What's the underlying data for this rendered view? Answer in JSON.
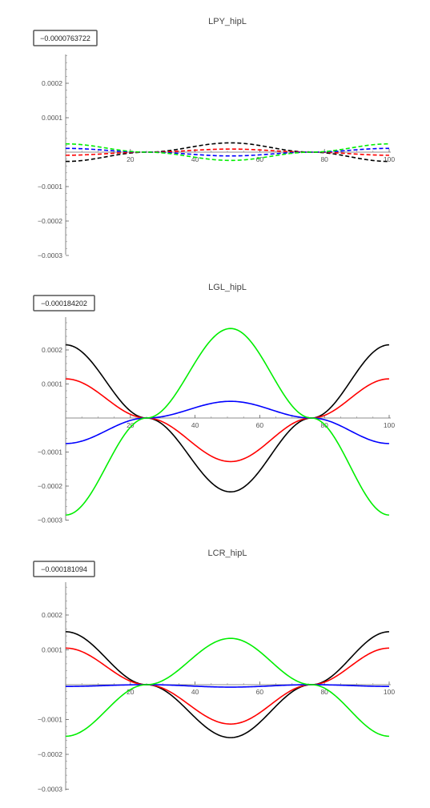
{
  "chart_data": [
    {
      "type": "line",
      "title": "LPY_hipL",
      "badge": "−0.0000763722",
      "xlim": [
        0,
        100
      ],
      "ylim": [
        -0.0003,
        0.0003
      ],
      "x_ticks": [
        20,
        40,
        60,
        80,
        100
      ],
      "x_tick_labels": [
        "20",
        "40",
        "60",
        "80",
        "100"
      ],
      "y_ticks": [
        0.0002,
        0.0001,
        -0.0001,
        -0.0002,
        -0.0003
      ],
      "y_tick_labels": [
        "0.0002",
        "0.0001",
        "−0.0001",
        "−0.0002",
        "−0.0003"
      ],
      "line_style": "dashed",
      "series": [
        {
          "color": "#000000",
          "values": [
            [
              0,
              -2.7e-05
            ],
            [
              25,
              0
            ],
            [
              51,
              2.7e-05
            ],
            [
              76,
              0
            ],
            [
              100,
              -2.7e-05
            ]
          ]
        },
        {
          "color": "#ff0000",
          "values": [
            [
              0,
              -9e-06
            ],
            [
              25,
              0
            ],
            [
              51,
              9e-06
            ],
            [
              76,
              0
            ],
            [
              100,
              -9e-06
            ]
          ]
        },
        {
          "color": "#0000ff",
          "values": [
            [
              0,
              1.1e-05
            ],
            [
              25,
              0
            ],
            [
              51,
              -1.1e-05
            ],
            [
              76,
              0
            ],
            [
              100,
              1.1e-05
            ]
          ]
        },
        {
          "color": "#00ee00",
          "values": [
            [
              0,
              2.4e-05
            ],
            [
              25,
              0
            ],
            [
              51,
              -2.4e-05
            ],
            [
              76,
              0
            ],
            [
              100,
              2.4e-05
            ]
          ]
        }
      ]
    },
    {
      "type": "line",
      "title": "LGL_hipL",
      "badge": "−0.000184202",
      "xlim": [
        0,
        100
      ],
      "ylim": [
        -0.0003,
        0.0003
      ],
      "x_ticks": [
        20,
        40,
        60,
        80,
        100
      ],
      "x_tick_labels": [
        "20",
        "40",
        "60",
        "80",
        "100"
      ],
      "y_ticks": [
        0.0002,
        0.0001,
        -0.0001,
        -0.0002,
        -0.0003
      ],
      "y_tick_labels": [
        "0.0002",
        "0.0001",
        "−0.0001",
        "−0.0002",
        "−0.0003"
      ],
      "line_style": "solid",
      "series": [
        {
          "color": "#000000",
          "values": [
            [
              0,
              0.000215
            ],
            [
              25,
              0
            ],
            [
              51,
              -0.000217
            ],
            [
              76,
              0
            ],
            [
              100,
              0.000215
            ]
          ]
        },
        {
          "color": "#ff0000",
          "values": [
            [
              0,
              0.000115
            ],
            [
              25,
              0
            ],
            [
              51,
              -0.000128
            ],
            [
              76,
              0
            ],
            [
              100,
              0.000115
            ]
          ]
        },
        {
          "color": "#0000ff",
          "values": [
            [
              0,
              -7.5e-05
            ],
            [
              25,
              0
            ],
            [
              51,
              4.9e-05
            ],
            [
              76,
              0
            ],
            [
              100,
              -7.5e-05
            ]
          ]
        },
        {
          "color": "#00ee00",
          "values": [
            [
              0,
              -0.000285
            ],
            [
              25,
              0
            ],
            [
              51,
              0.000263
            ],
            [
              76,
              0
            ],
            [
              100,
              -0.000285
            ]
          ]
        }
      ]
    },
    {
      "type": "line",
      "title": "LCR_hipL",
      "badge": "−0.000181094",
      "xlim": [
        0,
        100
      ],
      "ylim": [
        -0.0003,
        0.0003
      ],
      "x_ticks": [
        20,
        40,
        60,
        80,
        100
      ],
      "x_tick_labels": [
        "20",
        "40",
        "60",
        "80",
        "100"
      ],
      "y_ticks": [
        0.0002,
        0.0001,
        -0.0001,
        -0.0002,
        -0.0003
      ],
      "y_tick_labels": [
        "0.0002",
        "0.0001",
        "−0.0001",
        "−0.0002",
        "−0.0003"
      ],
      "line_style": "solid",
      "series": [
        {
          "color": "#000000",
          "values": [
            [
              0,
              0.000152
            ],
            [
              25,
              0
            ],
            [
              51,
              -0.000152
            ],
            [
              76,
              0
            ],
            [
              100,
              0.000152
            ]
          ]
        },
        {
          "color": "#ff0000",
          "values": [
            [
              0,
              0.000105
            ],
            [
              25,
              0
            ],
            [
              51,
              -0.000113
            ],
            [
              76,
              0
            ],
            [
              100,
              0.000105
            ]
          ]
        },
        {
          "color": "#0000ff",
          "values": [
            [
              0,
              -5e-06
            ],
            [
              25,
              0
            ],
            [
              51,
              -7e-06
            ],
            [
              76,
              0
            ],
            [
              100,
              -5e-06
            ]
          ]
        },
        {
          "color": "#00ee00",
          "values": [
            [
              0,
              -0.000148
            ],
            [
              25,
              0
            ],
            [
              51,
              0.000133
            ],
            [
              76,
              0
            ],
            [
              100,
              -0.000148
            ]
          ]
        }
      ]
    }
  ]
}
